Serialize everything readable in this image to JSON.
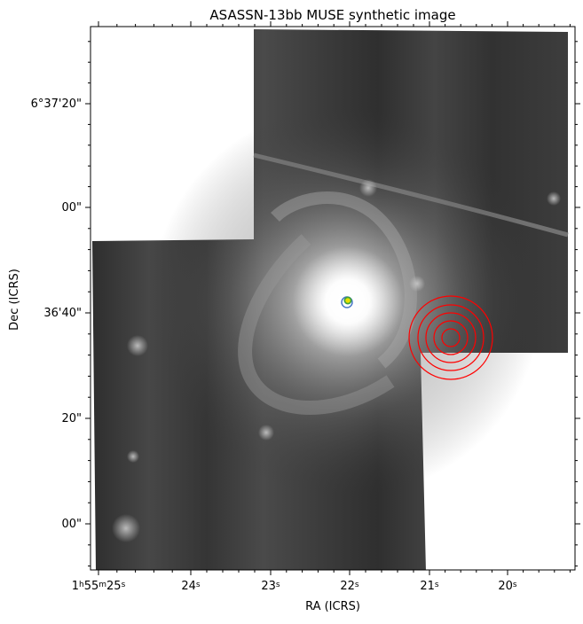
{
  "figure": {
    "title": "ASASSN-13bb MUSE synthetic image",
    "xlabel": "RA (ICRS)",
    "ylabel": "Dec (ICRS)",
    "x_ticks": [
      {
        "label_parts": [
          "1",
          "h",
          "55",
          "m",
          "25",
          "s"
        ]
      },
      {
        "label": "24",
        "sup": "s"
      },
      {
        "label": "23",
        "sup": "s"
      },
      {
        "label": "22",
        "sup": "s"
      },
      {
        "label": "21",
        "sup": "s"
      },
      {
        "label": "20",
        "sup": "s"
      }
    ],
    "y_ticks": [
      {
        "label": "6°37'20\""
      },
      {
        "label": "00\""
      },
      {
        "label": "36'40\""
      },
      {
        "label": "20\""
      },
      {
        "label": "00\""
      }
    ],
    "colors": {
      "background": "#ffffff",
      "axes": "#000000",
      "field_base": "#3a3a3a",
      "galaxy_core": "#ffffff",
      "marker_red": "#ff0000",
      "marker_center_blue": "#4a78c8",
      "marker_center_green": "#3fa040",
      "marker_center_yellow": "#e8e000"
    }
  }
}
